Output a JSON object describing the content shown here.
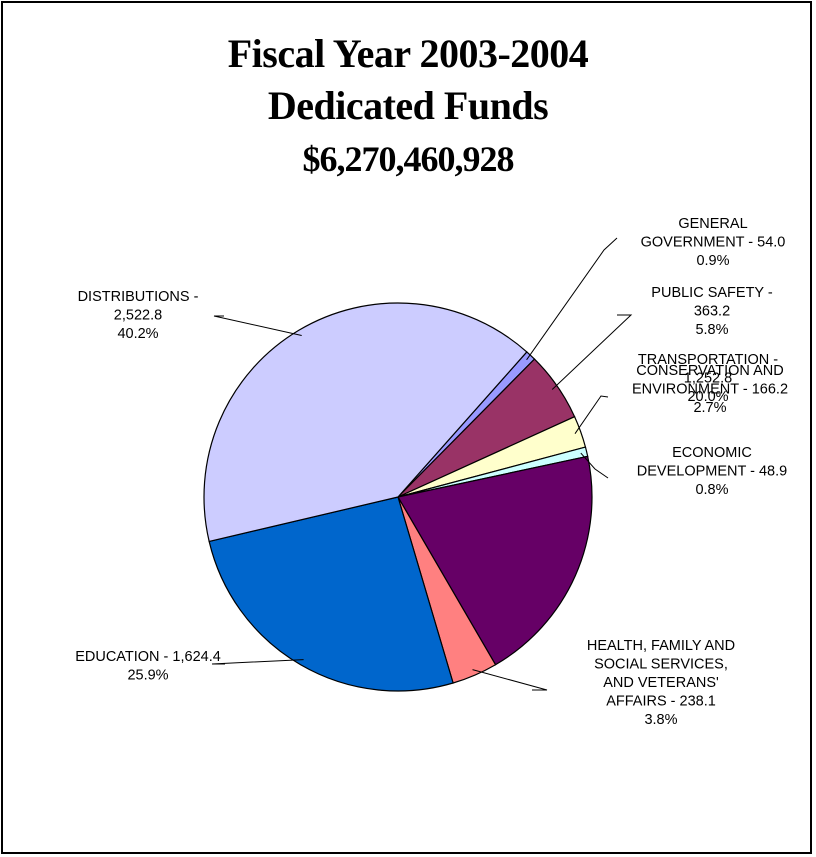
{
  "chart_data": {
    "type": "pie",
    "title": "Fiscal Year 2003-2004",
    "subtitle": "Dedicated Funds",
    "total": "$6,270,460,928",
    "start_angle_deg": -48.4,
    "slices": [
      {
        "name": "GENERAL GOVERNMENT",
        "value": 54.0,
        "value_label": "54.0",
        "percent": "0.9%",
        "color": "#9999ff"
      },
      {
        "name": "PUBLIC SAFETY",
        "value": 363.2,
        "value_label": "363.2",
        "percent": "5.8%",
        "color": "#993366"
      },
      {
        "name": "CONSERVATION AND ENVIRONMENT",
        "value": 166.2,
        "value_label": "166.2",
        "percent": "2.7%",
        "color": "#ffffcc"
      },
      {
        "name": "ECONOMIC DEVELOPMENT",
        "value": 48.9,
        "value_label": "48.9",
        "percent": "0.8%",
        "color": "#ccffff"
      },
      {
        "name": "TRANSPORTATION",
        "value": 1252.8,
        "value_label": "1,252.8",
        "percent": "20.0%",
        "color": "#660066"
      },
      {
        "name": "HEALTH, FAMILY AND SOCIAL SERVICES, AND VETERANS' AFFAIRS",
        "value": 238.1,
        "value_label": "238.1",
        "percent": "3.8%",
        "color": "#ff8080"
      },
      {
        "name": "EDUCATION",
        "value": 1624.4,
        "value_label": "1,624.4",
        "percent": "25.9%",
        "color": "#0066cc"
      },
      {
        "name": "DISTRIBUTIONS",
        "value": 2522.8,
        "value_label": "2,522.8",
        "percent": "40.2%",
        "color": "#ccccff"
      }
    ],
    "labels": [
      {
        "lines": [
          "GENERAL",
          "GOVERNMENT - 54.0",
          "0.9%"
        ]
      },
      {
        "lines": [
          "PUBLIC SAFETY -",
          "363.2",
          "5.8%"
        ]
      },
      {
        "lines": [
          "CONSERVATION AND",
          "ENVIRONMENT - 166.2",
          "2.7%"
        ]
      },
      {
        "lines": [
          "ECONOMIC",
          "DEVELOPMENT - 48.9",
          "0.8%"
        ]
      },
      {
        "lines": [
          "TRANSPORTATION -",
          "1,252.8",
          "20.0%"
        ]
      },
      {
        "lines": [
          "HEALTH, FAMILY AND",
          "SOCIAL SERVICES,",
          "AND VETERANS'",
          "AFFAIRS - 238.1",
          "3.8%"
        ]
      },
      {
        "lines": [
          "EDUCATION - 1,624.4",
          "25.9%"
        ]
      },
      {
        "lines": [
          "DISTRIBUTIONS -",
          "2,522.8",
          "40.2%"
        ]
      }
    ]
  }
}
